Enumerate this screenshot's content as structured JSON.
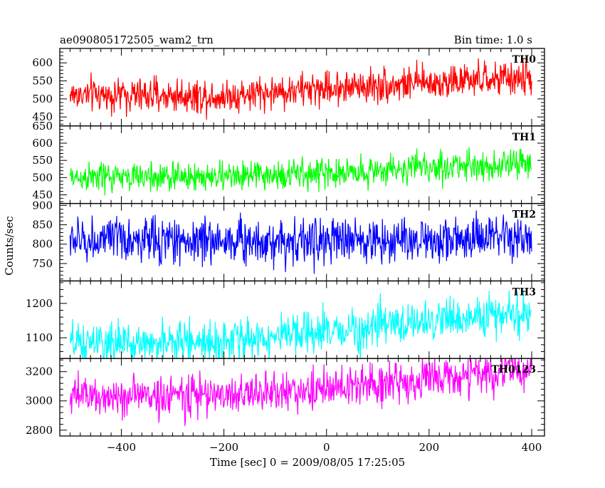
{
  "header": {
    "file_name": "ae090805172505_wam2_trn",
    "bin_time": "Bin time: 1.0 s"
  },
  "axes": {
    "xlabel": "Time [sec] 0 = 2009/08/05 17:25:05",
    "ylabel": "Counts/sec",
    "x_ticks": [
      "−400",
      "−200",
      "0",
      "200",
      "400"
    ]
  },
  "chart_data": {
    "type": "line",
    "x_range": [
      -500,
      400
    ],
    "xlim": [
      -520,
      425
    ],
    "bin_time_s": 1.0,
    "panels": [
      {
        "name": "TH0",
        "color": "#ff0000",
        "ylim": [
          425,
          640
        ],
        "yticks": [
          450,
          500,
          550,
          600
        ],
        "ytick_labels": [
          "450",
          "500",
          "550",
          "600"
        ],
        "trend": [
          [
            -500,
            512
          ],
          [
            -200,
            508
          ],
          [
            0,
            530
          ],
          [
            200,
            545
          ],
          [
            400,
            558
          ]
        ],
        "noise_sd": 24
      },
      {
        "name": "TH1",
        "color": "#00ff00",
        "ylim": [
          425,
          650
        ],
        "yticks": [
          450,
          500,
          550,
          600,
          650
        ],
        "ytick_labels": [
          "450",
          "500",
          "550",
          "600",
          "650"
        ],
        "trend": [
          [
            -500,
            500
          ],
          [
            -200,
            503
          ],
          [
            0,
            512
          ],
          [
            200,
            530
          ],
          [
            400,
            540
          ]
        ],
        "noise_sd": 22
      },
      {
        "name": "TH2",
        "color": "#0000ff",
        "ylim": [
          705,
          905
        ],
        "yticks": [
          750,
          800,
          850,
          900
        ],
        "ytick_labels": [
          "750",
          "800",
          "850",
          "900"
        ],
        "trend": [
          [
            -500,
            810
          ],
          [
            -200,
            810
          ],
          [
            0,
            808
          ],
          [
            200,
            812
          ],
          [
            400,
            813
          ]
        ],
        "noise_sd": 30
      },
      {
        "name": "TH3",
        "color": "#00ffff",
        "ylim": [
          1040,
          1265
        ],
        "yticks": [
          1100,
          1200
        ],
        "ytick_labels": [
          "1100",
          "1200"
        ],
        "trend": [
          [
            -500,
            1080
          ],
          [
            -200,
            1090
          ],
          [
            0,
            1115
          ],
          [
            200,
            1150
          ],
          [
            400,
            1170
          ]
        ],
        "noise_sd": 30
      },
      {
        "name": "TH0123",
        "color": "#ff00ff",
        "ylim": [
          2760,
          3290
        ],
        "yticks": [
          2800,
          3000,
          3200
        ],
        "ytick_labels": [
          "2800",
          "3000",
          "3200"
        ],
        "trend": [
          [
            -500,
            3030
          ],
          [
            -200,
            3040
          ],
          [
            0,
            3080
          ],
          [
            200,
            3150
          ],
          [
            400,
            3210
          ]
        ],
        "noise_sd": 70
      }
    ]
  }
}
